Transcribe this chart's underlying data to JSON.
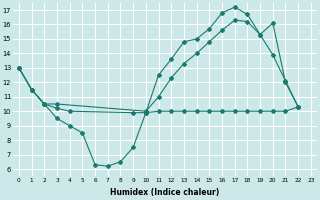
{
  "bg_color": "#cce8e8",
  "line_color": "#1a7a6e",
  "xlabel": "Humidex (Indice chaleur)",
  "xlim": [
    -0.5,
    23.5
  ],
  "ylim": [
    5.5,
    17.5
  ],
  "yticks": [
    6,
    7,
    8,
    9,
    10,
    11,
    12,
    13,
    14,
    15,
    16,
    17
  ],
  "xticks": [
    0,
    1,
    2,
    3,
    4,
    5,
    6,
    7,
    8,
    9,
    10,
    11,
    12,
    13,
    14,
    15,
    16,
    17,
    18,
    19,
    20,
    21,
    22,
    23
  ],
  "line1_x": [
    0,
    1,
    2,
    3,
    4,
    5,
    6,
    7,
    8,
    9,
    10,
    11,
    12,
    13,
    14,
    15,
    16,
    17,
    18,
    19,
    20,
    21,
    22
  ],
  "line1_y": [
    13.0,
    11.5,
    10.5,
    9.5,
    9.0,
    8.5,
    6.3,
    6.2,
    6.5,
    7.5,
    9.9,
    12.5,
    13.6,
    14.8,
    15.0,
    15.7,
    16.8,
    17.2,
    16.7,
    15.3,
    13.9,
    12.1,
    10.3
  ],
  "line2_x": [
    0,
    1,
    2,
    3,
    10,
    11,
    12,
    13,
    14,
    15,
    16,
    17,
    18,
    19,
    20,
    21,
    22
  ],
  "line2_y": [
    13.0,
    11.5,
    10.5,
    10.5,
    10.0,
    11.0,
    12.3,
    13.3,
    14.0,
    14.8,
    15.6,
    16.3,
    16.2,
    15.3,
    16.1,
    12.0,
    10.3
  ],
  "line3_x": [
    0,
    1,
    2,
    3,
    4,
    9,
    10,
    11,
    12,
    13,
    14,
    15,
    16,
    17,
    18,
    19,
    20,
    21,
    22
  ],
  "line3_y": [
    13.0,
    11.5,
    10.5,
    10.2,
    10.0,
    9.9,
    9.9,
    10.0,
    10.0,
    10.0,
    10.0,
    10.0,
    10.0,
    10.0,
    10.0,
    10.0,
    10.0,
    10.0,
    10.3
  ]
}
